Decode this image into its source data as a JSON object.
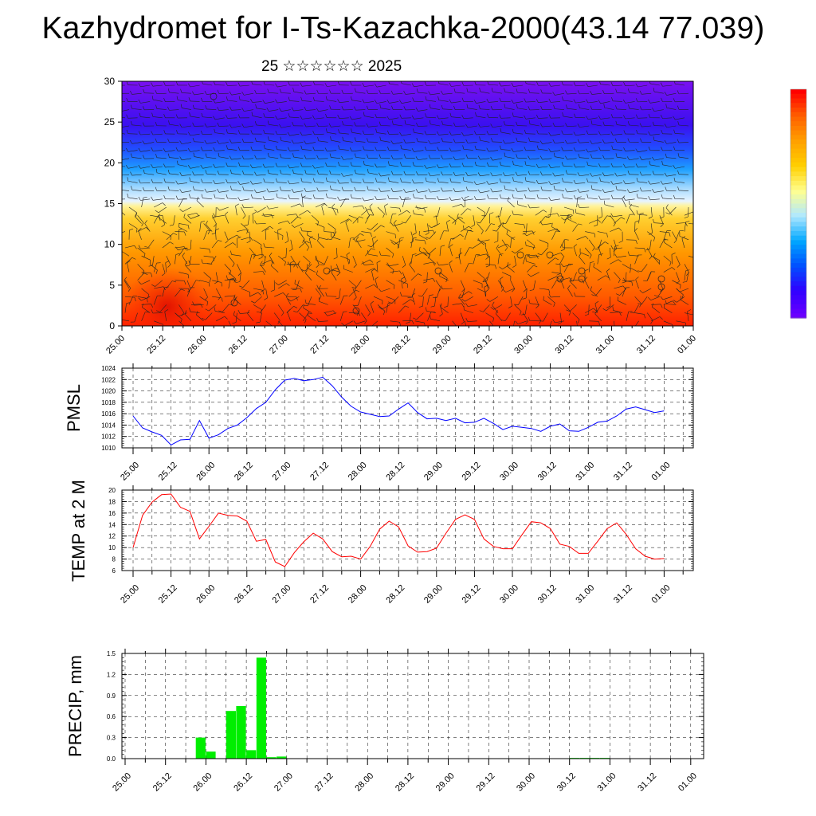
{
  "header": {
    "title": "Kazhydromet for I-Ts-Kazachka-2000(43.14 77.039)",
    "subtitle": "25 ☆☆☆☆☆☆ 2025"
  },
  "time_axis": {
    "labels": [
      "25.00",
      "25.12",
      "26.00",
      "26.12",
      "27.00",
      "27.12",
      "28.00",
      "28.12",
      "29.00",
      "29.12",
      "30.00",
      "30.12",
      "31.00",
      "31.12",
      "01.00"
    ]
  },
  "colors": {
    "pmsl_line": "#0000ff",
    "temp_line": "#ff0000",
    "precip_bar": "#00ee00"
  },
  "colorbar": {
    "stops": [
      "#ff0000",
      "#ff6000",
      "#ffa000",
      "#ffd000",
      "#ffff90",
      "#b0e8ff",
      "#00a8ff",
      "#0050ff",
      "#3000ff",
      "#6a00ff"
    ]
  },
  "chart_data": [
    {
      "id": "wind_temp_section",
      "type": "heatmap",
      "ylim": [
        0,
        30
      ],
      "yticks": [
        "0",
        "5",
        "10",
        "15",
        "20",
        "25",
        "30"
      ],
      "x": [
        "25.00",
        "25.12",
        "26.00",
        "26.12",
        "27.00",
        "27.12",
        "28.00",
        "28.12",
        "29.00",
        "29.12",
        "30.00",
        "30.12",
        "31.00",
        "31.12",
        "01.00"
      ]
    },
    {
      "id": "pmsl",
      "type": "line",
      "ylabel": "PMSL",
      "ylim": [
        1010,
        1024
      ],
      "yticks": [
        "1010",
        "1012",
        "1014",
        "1016",
        "1018",
        "1020",
        "1022",
        "1024"
      ],
      "grid": true,
      "step_hours": 3,
      "values": [
        1015.6,
        1013.5,
        1012.8,
        1012.2,
        1010.5,
        1011.4,
        1011.5,
        1014.8,
        1011.7,
        1012.3,
        1013.4,
        1014.0,
        1015.3,
        1016.9,
        1018.0,
        1020.2,
        1021.9,
        1022.2,
        1021.8,
        1022.0,
        1022.4,
        1020.9,
        1018.9,
        1017.3,
        1016.3,
        1015.9,
        1015.5,
        1015.6,
        1016.8,
        1017.9,
        1016.2,
        1015.1,
        1015.2,
        1014.8,
        1015.2,
        1014.4,
        1014.5,
        1015.2,
        1014.3,
        1013.2,
        1013.8,
        1013.6,
        1013.4,
        1012.9,
        1013.8,
        1014.2,
        1013.0,
        1012.9,
        1013.6,
        1014.5,
        1014.7,
        1015.6,
        1016.8,
        1017.2,
        1016.7,
        1016.2,
        1016.5
      ]
    },
    {
      "id": "temp2m",
      "type": "line",
      "ylabel": "TEMP at 2 M",
      "ylim": [
        6,
        20
      ],
      "yticks": [
        "6",
        "8",
        "10",
        "12",
        "14",
        "16",
        "18",
        "20"
      ],
      "grid": true,
      "step_hours": 3,
      "values": [
        10.0,
        15.6,
        17.9,
        19.2,
        19.3,
        17.0,
        16.3,
        11.5,
        13.7,
        16.0,
        15.6,
        15.5,
        14.6,
        11.1,
        11.4,
        7.5,
        6.7,
        9.1,
        11.0,
        12.5,
        11.5,
        9.3,
        8.4,
        8.5,
        8.0,
        10.2,
        13.2,
        14.6,
        13.6,
        10.3,
        9.2,
        9.3,
        9.9,
        12.5,
        14.9,
        15.7,
        14.9,
        11.5,
        10.2,
        9.8,
        9.8,
        12.2,
        14.5,
        14.3,
        13.3,
        10.6,
        10.2,
        9.0,
        9.0,
        11.1,
        13.3,
        14.3,
        12.3,
        9.8,
        8.5,
        8.0,
        8.1
      ]
    },
    {
      "id": "precip",
      "type": "bar",
      "ylabel": "PRECIP, mm",
      "ylim": [
        0,
        1.5
      ],
      "yticks": [
        "0.0",
        "0.3",
        "0.6",
        "0.9",
        "1.2",
        "1.5"
      ],
      "grid": true,
      "step_hours": 3,
      "values": [
        0,
        0,
        0,
        0,
        0,
        0,
        0,
        0.3,
        0.1,
        0,
        0.68,
        0.75,
        0.12,
        1.44,
        0.02,
        0.03,
        0,
        0,
        0,
        0,
        0,
        0,
        0,
        0,
        0,
        0,
        0,
        0,
        0,
        0,
        0,
        0,
        0,
        0,
        0,
        0,
        0,
        0,
        0,
        0,
        0,
        0,
        0,
        0,
        0.01,
        0.01,
        0.01,
        0.01,
        0,
        0,
        0,
        0,
        0,
        0,
        0,
        0
      ]
    }
  ]
}
